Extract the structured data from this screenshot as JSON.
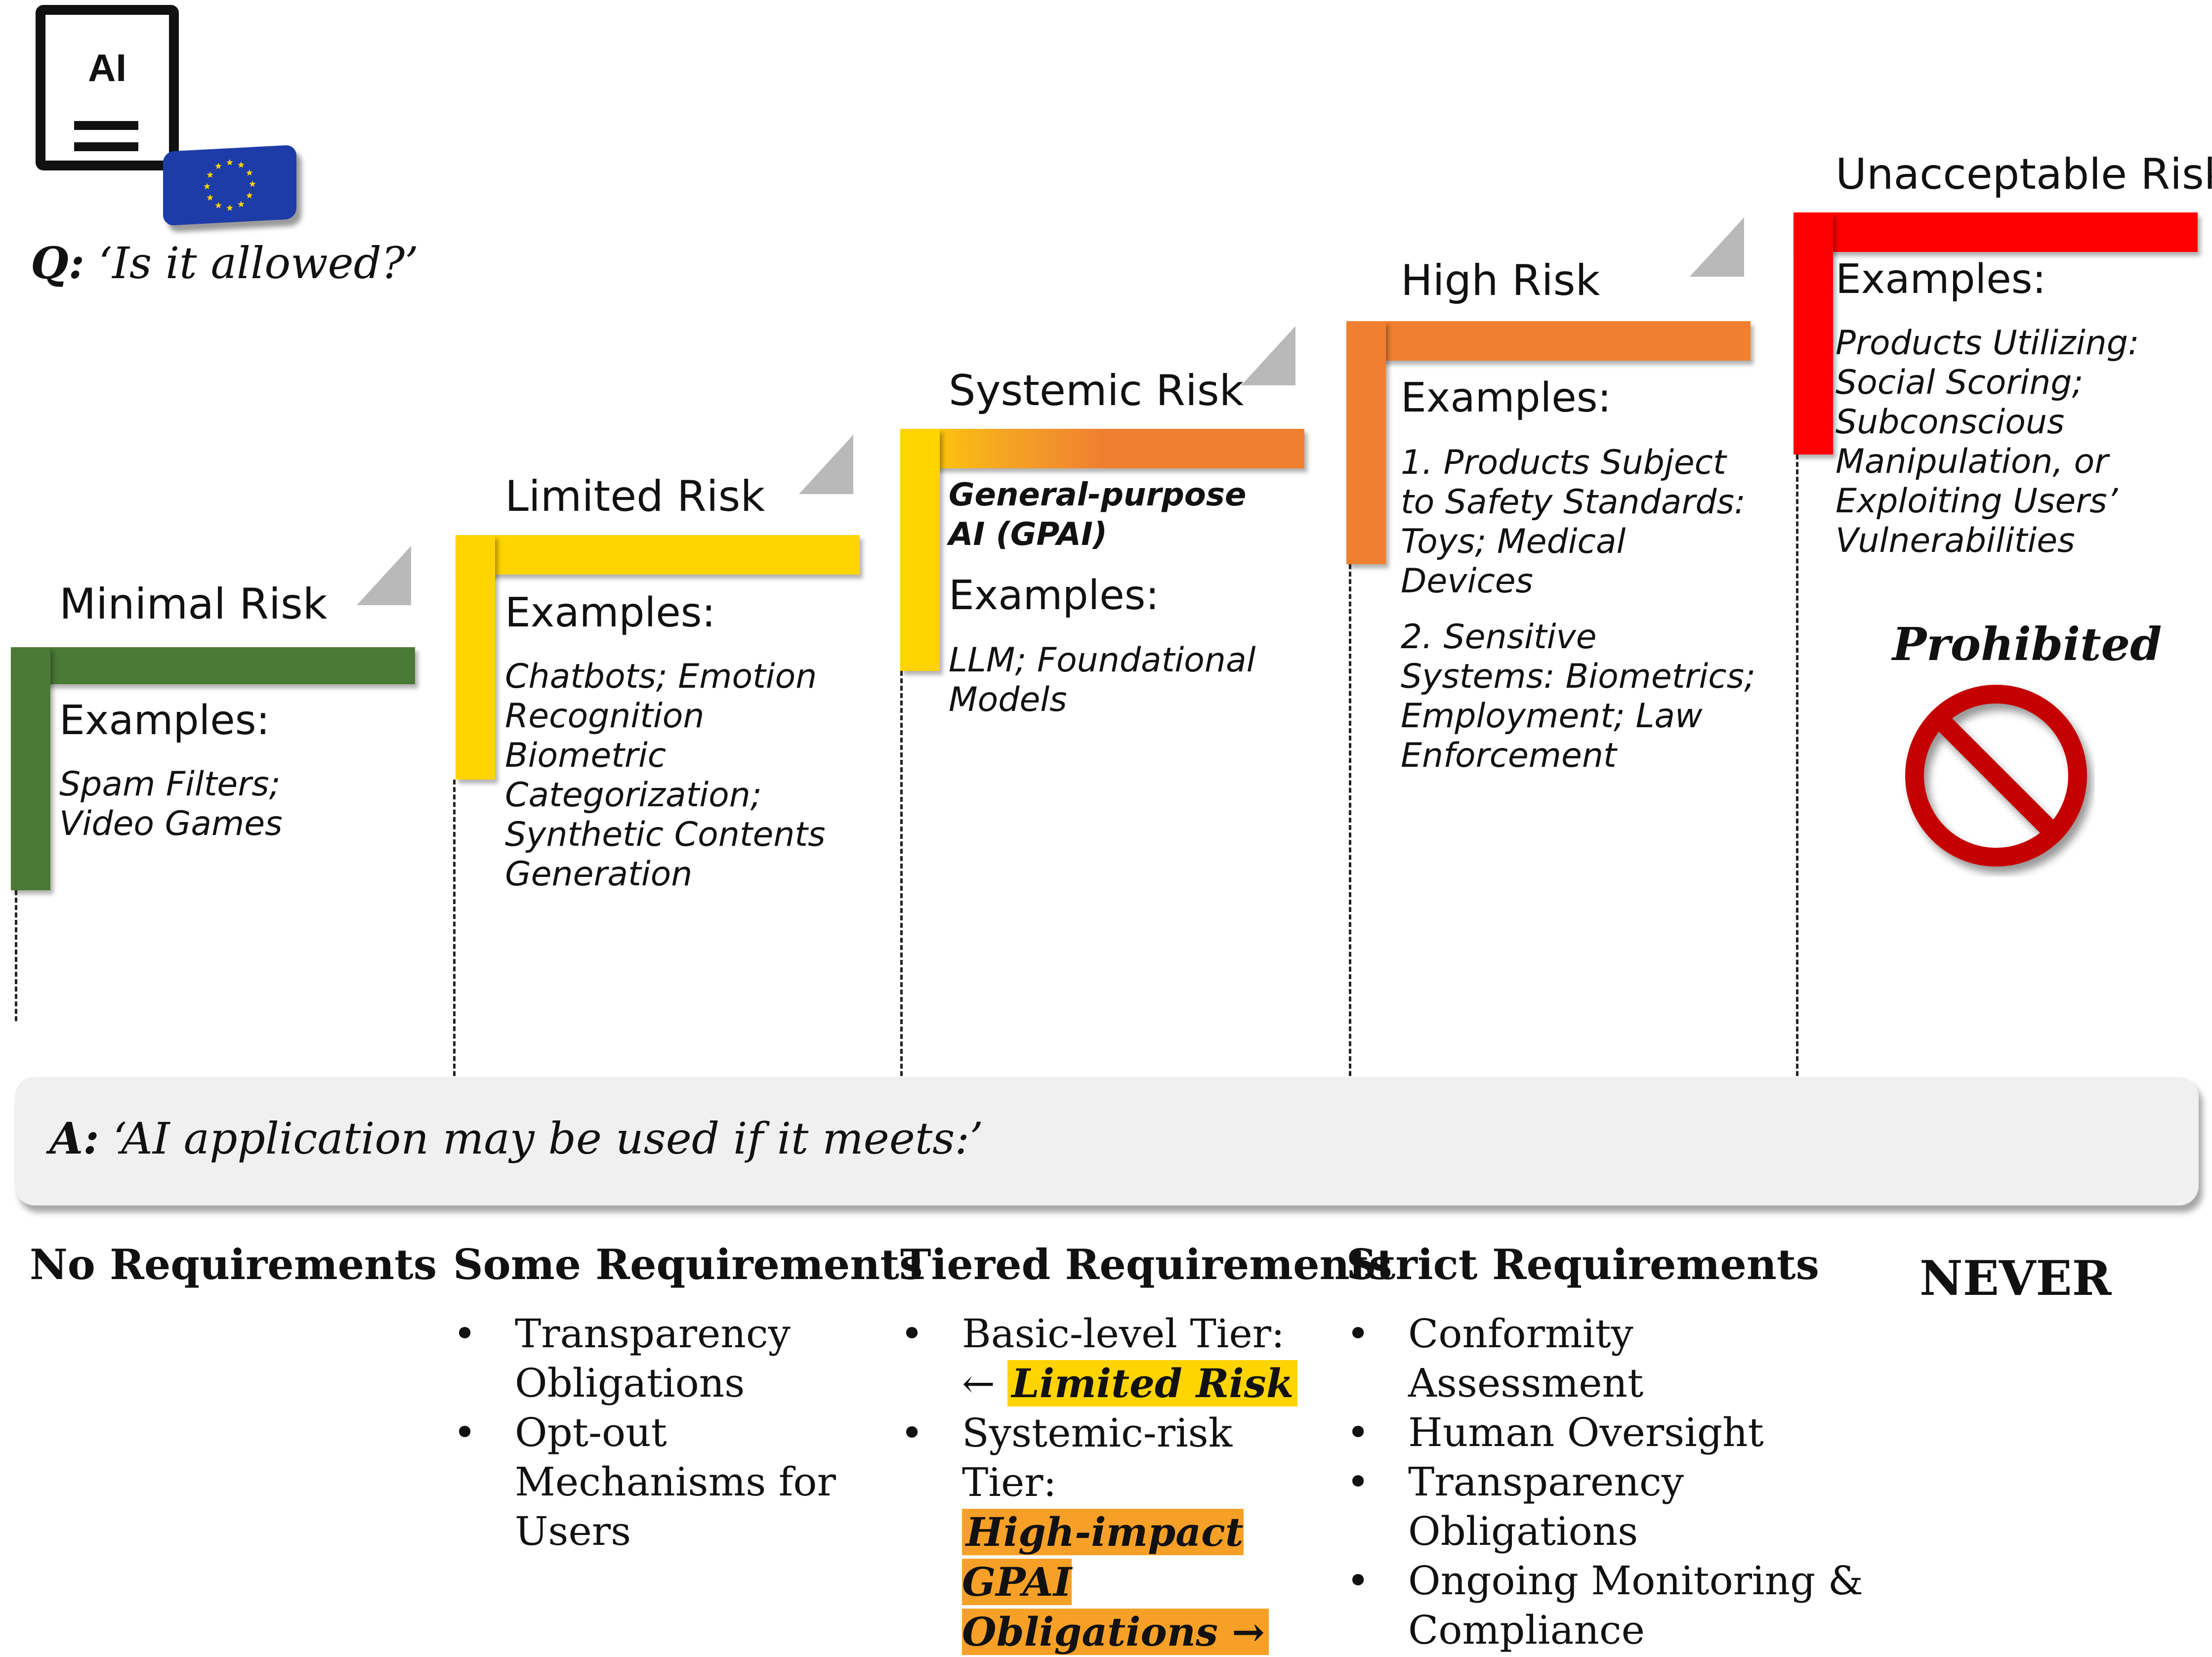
{
  "header": {
    "doc_icon_label": "AI",
    "question_prefix": "Q:",
    "question_text": "‘Is it allowed?’",
    "eu_flag_color": "#1e3ca8",
    "eu_star_color": "#ffd400"
  },
  "tiers": [
    {
      "name": "Minimal Risk",
      "color": "#4a7a35",
      "examples_label": "Examples:",
      "examples": "Spam Filters; Video Games"
    },
    {
      "name": "Limited Risk",
      "color": "#ffd400",
      "examples_label": "Examples:",
      "examples": "Chatbots; Emotion Recognition Biometric Categorization; Synthetic Contents Generation"
    },
    {
      "name": "Systemic Risk",
      "color": "#f08030",
      "subtitle": "General-purpose AI (GPAI)",
      "examples_label": "Examples:",
      "examples": "LLM; Foundational Models"
    },
    {
      "name": "High Risk",
      "color": "#f08030",
      "examples_label": "Examples:",
      "examples_1": "1. Products Subject to Safety Standards: Toys; Medical Devices",
      "examples_2": "2. Sensitive Systems: Biometrics; Employment; Law Enforcement"
    },
    {
      "name": "Unacceptable Risk",
      "color": "#ff0000",
      "examples_label": "Examples:",
      "examples": "Products Utilizing: Social Scoring; Subconscious Manipulation, or Exploiting Users’ Vulnerabilities",
      "status": "Prohibited"
    }
  ],
  "answer": {
    "prefix": "A:",
    "text": "‘AI application may be used if it meets:’"
  },
  "requirements": [
    {
      "title": "No Requirements",
      "items": []
    },
    {
      "title": "Some Requirements",
      "items": [
        "Transparency Obligations",
        "Opt-out Mechanisms for Users"
      ]
    },
    {
      "title": "Tiered Requirements",
      "items": [
        "Basic-level Tier:",
        "Systemic-risk Tier:"
      ],
      "item1_arrow": "←",
      "item1_highlight": "Limited Risk",
      "item2_highlight": "High-impact GPAI Obligations",
      "item2_arrow": "→",
      "highlight1_color": "#ffd400",
      "highlight2_color": "#f7a028"
    },
    {
      "title": "Strict Requirements",
      "items": [
        "Conformity Assessment",
        "Human Oversight",
        "Transparency Obligations",
        "Ongoing Monitoring & Compliance"
      ]
    },
    {
      "title": "NEVER",
      "items": []
    }
  ],
  "icons": {
    "document": "document-icon",
    "flag": "eu-flag-icon",
    "prohibited": "prohibited-icon"
  }
}
